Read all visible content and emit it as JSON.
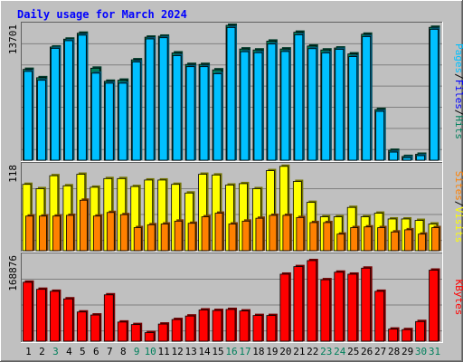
{
  "chart_data": [
    {
      "type": "bar",
      "title": "Daily usage for March 2024",
      "ylabel_parts": [
        "Pages",
        "Files",
        "Hits"
      ],
      "ytick": "13701",
      "ylim": [
        0,
        13701
      ],
      "categories": [
        "1",
        "2",
        "3",
        "4",
        "5",
        "6",
        "7",
        "8",
        "9",
        "10",
        "11",
        "12",
        "13",
        "14",
        "15",
        "16",
        "17",
        "18",
        "19",
        "20",
        "21",
        "22",
        "23",
        "24",
        "25",
        "26",
        "27",
        "28",
        "29",
        "30",
        "31"
      ],
      "series": [
        {
          "name": "Hits",
          "color": "#00805c",
          "values": [
            9230,
            8380,
            11500,
            12300,
            12900,
            9350,
            8020,
            8130,
            10200,
            12500,
            12600,
            10900,
            9730,
            9730,
            9180,
            13701,
            11300,
            11200,
            12100,
            11300,
            13000,
            11600,
            11200,
            11400,
            10800,
            12800,
            5150,
            1000,
            380,
            600,
            13500
          ]
        },
        {
          "name": "Files",
          "color": "#00c0ff",
          "values": [
            9020,
            8120,
            11360,
            12140,
            12700,
            8840,
            7820,
            7820,
            9980,
            12320,
            12440,
            10620,
            9500,
            9500,
            8780,
            13480,
            11020,
            10920,
            11800,
            11040,
            12740,
            11330,
            10900,
            11260,
            10520,
            12560,
            4960,
            820,
            250,
            460,
            13300
          ]
        },
        {
          "name": "Pages",
          "color": "#00c0ff",
          "values": [
            9020,
            8120,
            11360,
            12140,
            12700,
            8840,
            7820,
            7820,
            9980,
            12320,
            12440,
            10620,
            9500,
            9500,
            8780,
            13480,
            11020,
            10920,
            11800,
            11040,
            12740,
            11330,
            10900,
            11260,
            10520,
            12560,
            4960,
            820,
            250,
            460,
            13300
          ]
        }
      ]
    },
    {
      "type": "bar",
      "ylabel_parts": [
        "Sites",
        "Visits"
      ],
      "ytick": "118",
      "ylim": [
        0,
        118
      ],
      "categories": [
        "1",
        "2",
        "3",
        "4",
        "5",
        "6",
        "7",
        "8",
        "9",
        "10",
        "11",
        "12",
        "13",
        "14",
        "15",
        "16",
        "17",
        "18",
        "19",
        "20",
        "21",
        "22",
        "23",
        "24",
        "25",
        "26",
        "27",
        "28",
        "29",
        "30",
        "31"
      ],
      "series": [
        {
          "name": "Visits",
          "color": "#ffff00",
          "values": [
            92,
            86,
            104,
            90,
            106,
            88,
            100,
            100,
            89,
            98,
            98,
            92,
            80,
            106,
            105,
            91,
            93,
            86,
            111,
            117,
            96,
            67,
            47,
            47,
            60,
            47,
            52,
            44,
            44,
            42,
            37
          ]
        },
        {
          "name": "Sites",
          "color": "#ff8000",
          "values": [
            48,
            48,
            48,
            49,
            70,
            48,
            53,
            50,
            32,
            36,
            37,
            41,
            38,
            47,
            52,
            37,
            41,
            45,
            49,
            49,
            46,
            39,
            39,
            23,
            32,
            33,
            32,
            26,
            29,
            23,
            32
          ]
        }
      ]
    },
    {
      "type": "bar",
      "ylabel_parts": [
        "KBytes"
      ],
      "ytick": "168876",
      "ylim": [
        0,
        168876
      ],
      "categories": [
        "1",
        "2",
        "3",
        "4",
        "5",
        "6",
        "7",
        "8",
        "9",
        "10",
        "11",
        "12",
        "13",
        "14",
        "15",
        "16",
        "17",
        "18",
        "19",
        "20",
        "21",
        "22",
        "23",
        "24",
        "25",
        "26",
        "27",
        "28",
        "29",
        "30",
        "31"
      ],
      "series": [
        {
          "name": "KBytes",
          "color": "#ff0000",
          "values": [
            117000,
            103000,
            99000,
            84000,
            58000,
            52000,
            92000,
            38000,
            33000,
            17000,
            34000,
            43000,
            50000,
            62000,
            61000,
            63000,
            60000,
            51000,
            51000,
            133000,
            148000,
            160000,
            122000,
            137000,
            133000,
            145000,
            99000,
            24000,
            23000,
            39000,
            141000
          ]
        }
      ]
    }
  ],
  "day_labels": [
    {
      "day": "1",
      "color": "#000000"
    },
    {
      "day": "2",
      "color": "#000000"
    },
    {
      "day": "3",
      "color": "#00805c"
    },
    {
      "day": "4",
      "color": "#000000"
    },
    {
      "day": "5",
      "color": "#000000"
    },
    {
      "day": "6",
      "color": "#000000"
    },
    {
      "day": "7",
      "color": "#000000"
    },
    {
      "day": "8",
      "color": "#000000"
    },
    {
      "day": "9",
      "color": "#00805c"
    },
    {
      "day": "10",
      "color": "#00805c"
    },
    {
      "day": "11",
      "color": "#000000"
    },
    {
      "day": "12",
      "color": "#000000"
    },
    {
      "day": "13",
      "color": "#000000"
    },
    {
      "day": "14",
      "color": "#000000"
    },
    {
      "day": "15",
      "color": "#000000"
    },
    {
      "day": "16",
      "color": "#00805c"
    },
    {
      "day": "17",
      "color": "#00805c"
    },
    {
      "day": "18",
      "color": "#000000"
    },
    {
      "day": "19",
      "color": "#000000"
    },
    {
      "day": "20",
      "color": "#000000"
    },
    {
      "day": "21",
      "color": "#000000"
    },
    {
      "day": "22",
      "color": "#000000"
    },
    {
      "day": "23",
      "color": "#00805c"
    },
    {
      "day": "24",
      "color": "#00805c"
    },
    {
      "day": "25",
      "color": "#000000"
    },
    {
      "day": "26",
      "color": "#000000"
    },
    {
      "day": "27",
      "color": "#000000"
    },
    {
      "day": "28",
      "color": "#000000"
    },
    {
      "day": "29",
      "color": "#000000"
    },
    {
      "day": "30",
      "color": "#00805c"
    },
    {
      "day": "31",
      "color": "#00805c"
    }
  ],
  "colors": {
    "background": "#c0c0c0",
    "title": "#0000ff",
    "grid": "#808080"
  }
}
